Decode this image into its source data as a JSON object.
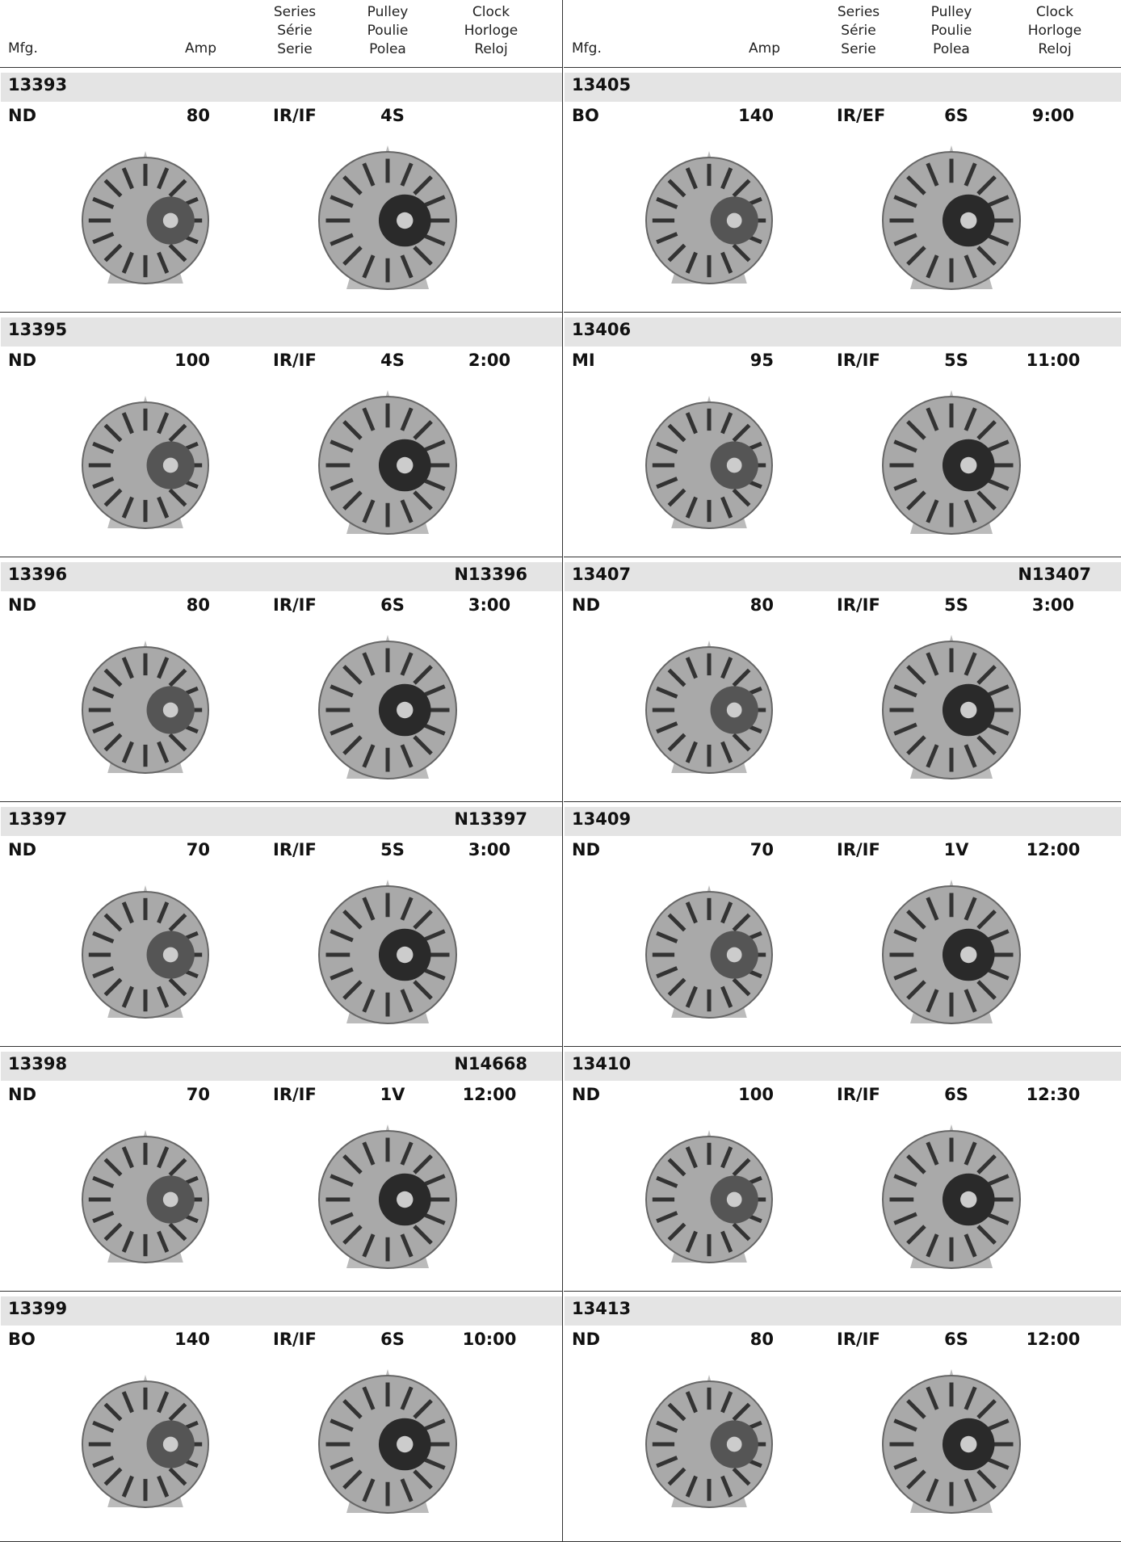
{
  "header": {
    "mfg": "Mfg.",
    "amp": "Amp",
    "series": [
      "Series",
      "Série",
      "Serie"
    ],
    "pulley": [
      "Pulley",
      "Poulie",
      "Polea"
    ],
    "clock": [
      "Clock",
      "Horloge",
      "Reloj"
    ]
  },
  "panels": [
    [
      {
        "part": "13393",
        "mfg": "ND",
        "amp": 80,
        "series": "IR/IF",
        "pulley": "4S"
      },
      {
        "part": "13395",
        "mfg": "ND",
        "amp": 100,
        "series": "IR/IF",
        "pulley": "4S",
        "clock": "2:00"
      },
      {
        "part": "13396",
        "mfg": "ND",
        "amp": 80,
        "series": "IR/IF",
        "pulley": "6S",
        "clock": "3:00",
        "alt": "N13396"
      },
      {
        "part": "13397",
        "mfg": "ND",
        "amp": 70,
        "series": "IR/IF",
        "pulley": "5S",
        "clock": "3:00",
        "alt": "N13397"
      },
      {
        "part": "13398",
        "mfg": "ND",
        "amp": 70,
        "series": "IR/IF",
        "pulley": "1V",
        "clock": "12:00",
        "alt": "N14668"
      },
      {
        "part": "13399",
        "mfg": "BO",
        "amp": 140,
        "series": "IR/IF",
        "pulley": "6S",
        "clock": "10:00"
      }
    ],
    [
      {
        "part": "13405",
        "mfg": "BO",
        "amp": 140,
        "series": "IR/EF",
        "pulley": "6S",
        "clock": "9:00"
      },
      {
        "part": "13406",
        "mfg": "MI",
        "amp": 95,
        "series": "IR/IF",
        "pulley": "5S",
        "clock": "11:00"
      },
      {
        "part": "13407",
        "mfg": "ND",
        "amp": 80,
        "series": "IR/IF",
        "pulley": "5S",
        "clock": "3:00",
        "alt": "N13407"
      },
      {
        "part": "13409",
        "mfg": "ND",
        "amp": 70,
        "series": "IR/IF",
        "pulley": "1V",
        "clock": "12:00"
      },
      {
        "part": "13410",
        "mfg": "ND",
        "amp": 100,
        "series": "IR/IF",
        "pulley": "6S",
        "clock": "12:30"
      },
      {
        "part": "13413",
        "mfg": "ND",
        "amp": 80,
        "series": "IR/IF",
        "pulley": "6S",
        "clock": "12:00"
      }
    ]
  ]
}
